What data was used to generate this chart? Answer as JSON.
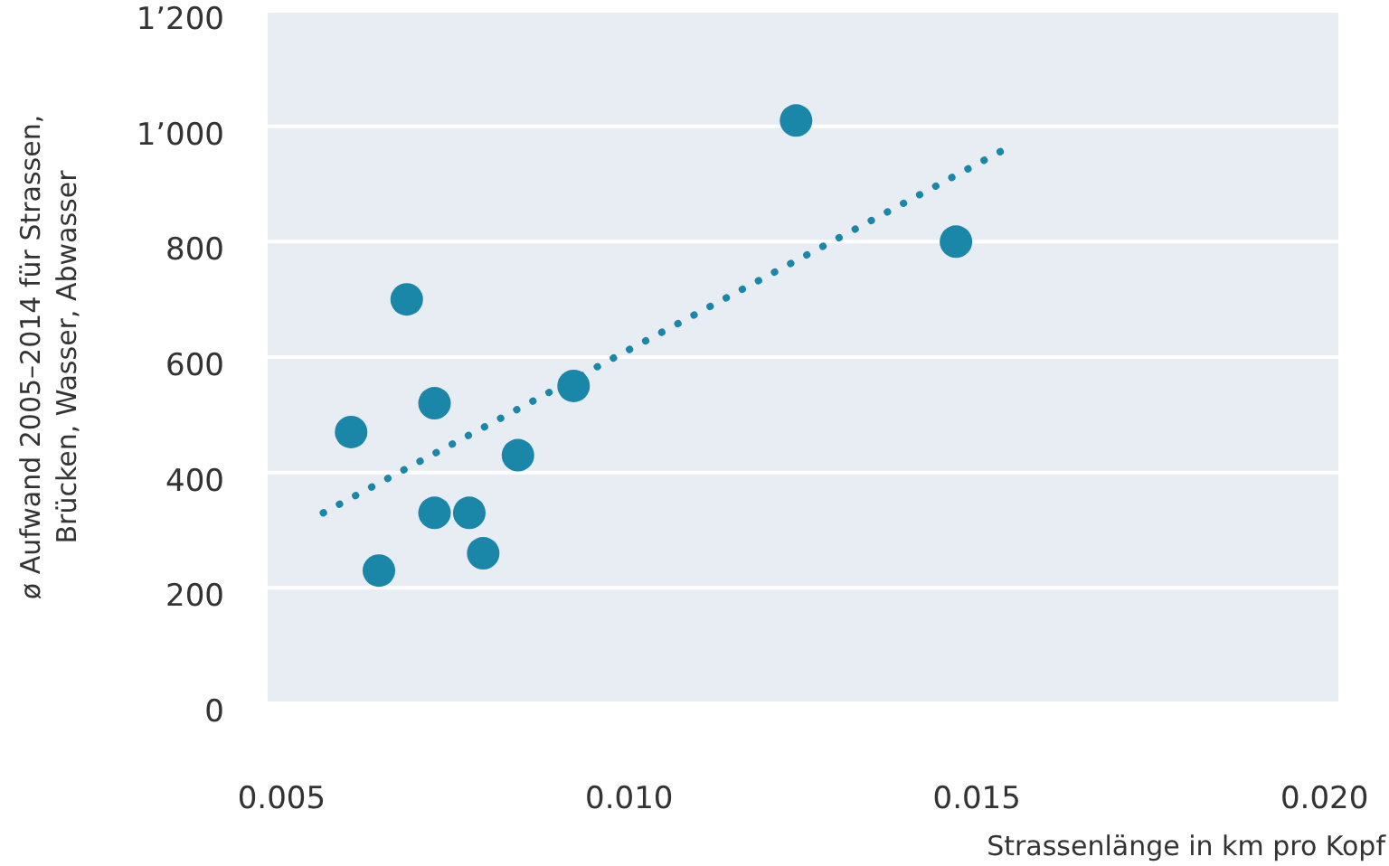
{
  "chart_data": {
    "type": "scatter",
    "xlabel": "Strassenlänge in km pro Kopf",
    "ylabel": "ø Aufwand 2005–2014 für Strassen,\nBrücken, Wasser, Abwasser",
    "xlim": [
      0.0048,
      0.0202
    ],
    "xticks": [
      {
        "value": 0.005,
        "label": "0.005"
      },
      {
        "value": 0.01,
        "label": "0.010"
      },
      {
        "value": 0.015,
        "label": "0.015"
      },
      {
        "value": 0.02,
        "label": "0.020"
      }
    ],
    "ylim": [
      0,
      1200
    ],
    "yticks": [
      0,
      200,
      400,
      600,
      800,
      {
        "value": 1000,
        "label": "1’000"
      },
      {
        "value": 1200,
        "label": "1’200"
      }
    ],
    "grid": "y",
    "marker": "circle",
    "series": [
      {
        "color": "#1a86a8",
        "x": [
          0.006,
          0.0064,
          0.0068,
          0.0072,
          0.0072,
          0.0077,
          0.0079,
          0.0084,
          0.0092,
          0.0124,
          0.0147
        ],
        "values": [
          470,
          230,
          700,
          520,
          330,
          330,
          260,
          430,
          550,
          1010,
          800
        ]
      },
      {
        "type": "line",
        "color": "#1a86a8",
        "line_style": "dotted",
        "marker": "none",
        "x": [
          0.0056,
          0.0154
        ],
        "values": [
          330,
          960
        ]
      }
    ]
  }
}
